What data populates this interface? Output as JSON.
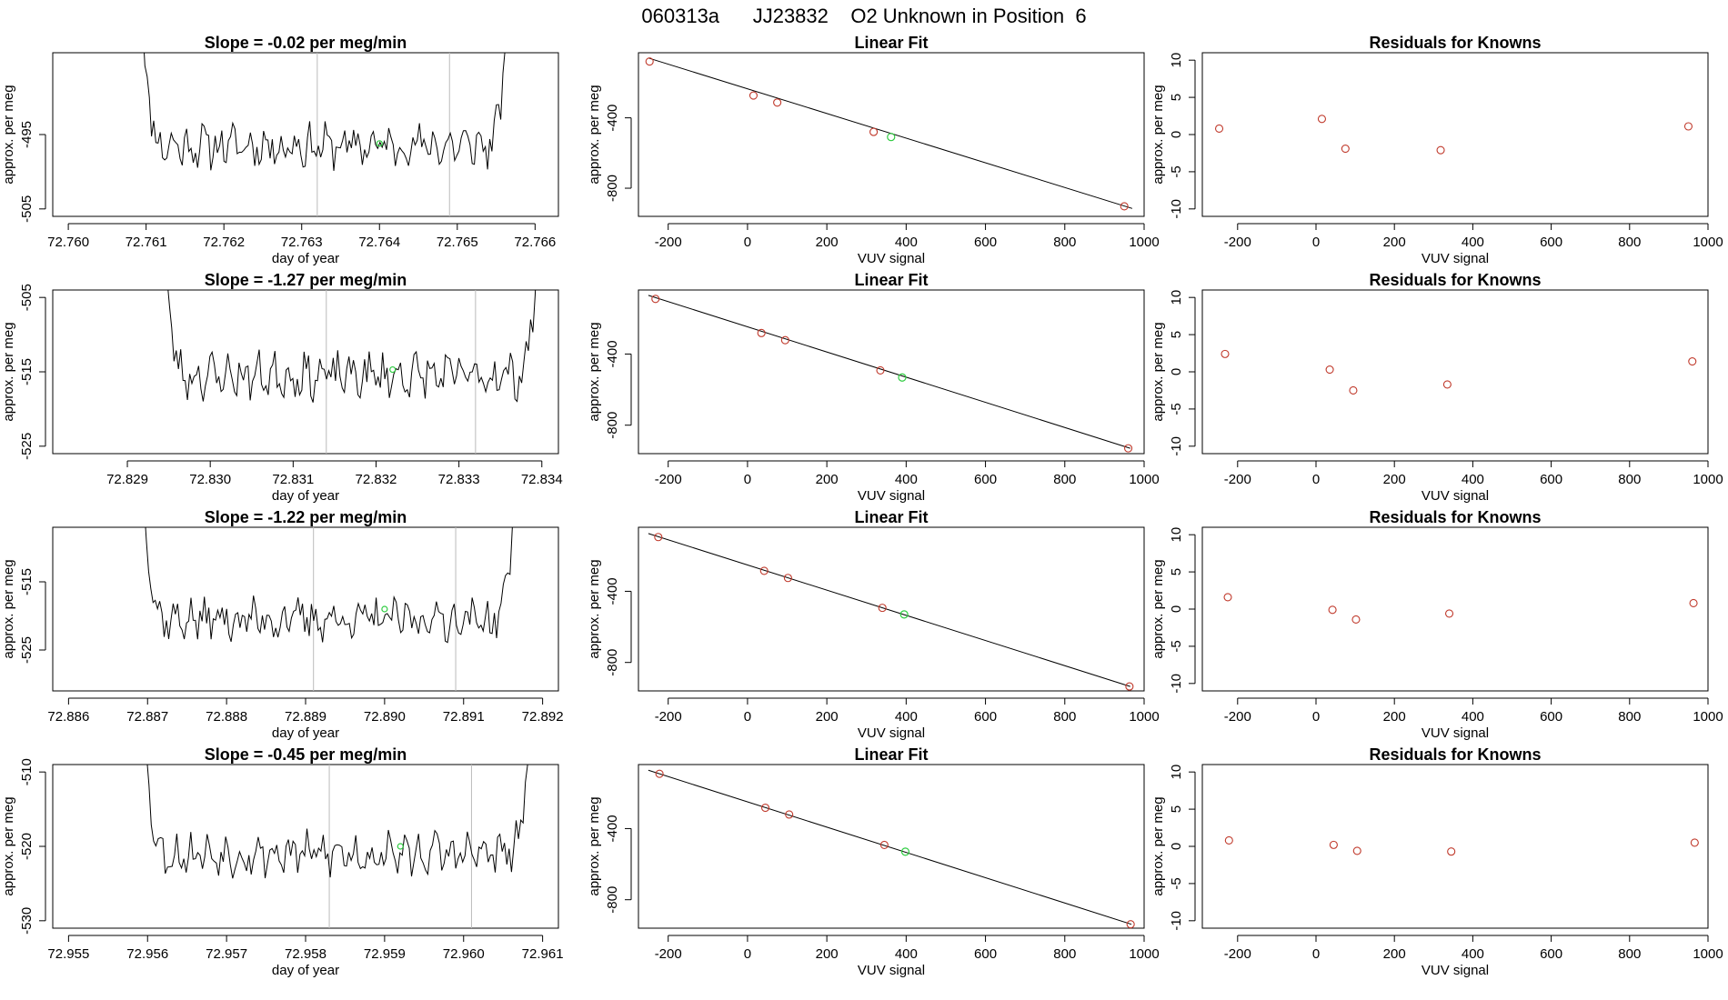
{
  "page_title": "060313a      JJ23832    O2 Unknown in Position  6",
  "colors": {
    "line": "#000000",
    "known_point": "#c0392b",
    "unknown_point": "#2ecc40",
    "vline": "#bbbbbb"
  },
  "chart_data": [
    {
      "type": "line",
      "title": "Slope =  -0.02  per meg/min",
      "xlabel": "day of year",
      "ylabel": "approx. per meg",
      "xlim": [
        72.7598,
        72.7663
      ],
      "ylim": [
        -506,
        -484
      ],
      "xticks": [
        "72.760",
        "72.761",
        "72.762",
        "72.763",
        "72.764",
        "72.765",
        "72.766"
      ],
      "xtick_values": [
        72.76,
        72.761,
        72.762,
        72.763,
        72.764,
        72.765,
        72.766
      ],
      "yticks": [
        "-495",
        "-505"
      ],
      "ytick_values": [
        -495,
        -505
      ],
      "x_start": 72.7609,
      "x_end": 72.7657,
      "base": -496.5,
      "amp": 2.2,
      "seed": 11,
      "vlines": [
        72.7632,
        72.7649
      ],
      "unknown_point": {
        "x": 72.764,
        "y": -496.2
      }
    },
    {
      "type": "scatter",
      "title": "Linear Fit",
      "xlabel": "VUV signal",
      "ylabel": "approx. per meg",
      "xlim": [
        -275,
        1000
      ],
      "ylim": [
        -960,
        -30
      ],
      "xticks": [
        "-200",
        "0",
        "200",
        "400",
        "600",
        "800",
        "1000"
      ],
      "xtick_values": [
        -200,
        0,
        200,
        400,
        600,
        800,
        1000
      ],
      "yticks": [
        "-400",
        "-800"
      ],
      "ytick_values": [
        -400,
        -800
      ],
      "fit_line": [
        [
          -250,
          -60
        ],
        [
          970,
          -915
        ]
      ],
      "known_points": [
        [
          -247,
          -80
        ],
        [
          15,
          -273
        ],
        [
          75,
          -313
        ],
        [
          318,
          -480
        ],
        [
          950,
          -903
        ]
      ],
      "unknown_point": [
        362,
        -509
      ]
    },
    {
      "type": "scatter",
      "title": "Residuals for Knowns",
      "xlabel": "VUV signal",
      "ylabel": "approx. per meg",
      "xlim": [
        -290,
        1000
      ],
      "ylim": [
        -11,
        11
      ],
      "xticks": [
        "-200",
        "0",
        "200",
        "400",
        "600",
        "800",
        "1000"
      ],
      "xtick_values": [
        -200,
        0,
        200,
        400,
        600,
        800,
        1000
      ],
      "yticks": [
        "-10",
        "-5",
        "0",
        "5",
        "10"
      ],
      "ytick_values": [
        -10,
        -5,
        0,
        5,
        10
      ],
      "known_points": [
        [
          -247,
          0.8
        ],
        [
          15,
          2.1
        ],
        [
          75,
          -1.9
        ],
        [
          318,
          -2.1
        ],
        [
          950,
          1.1
        ]
      ]
    },
    {
      "type": "line",
      "title": "Slope =  -1.27  per meg/min",
      "xlabel": "day of year",
      "ylabel": "approx. per meg",
      "xlim": [
        72.8281,
        72.8342
      ],
      "ylim": [
        -526,
        -504
      ],
      "xticks": [
        "72.829",
        "72.830",
        "72.831",
        "72.832",
        "72.833",
        "72.834"
      ],
      "xtick_values": [
        72.829,
        72.83,
        72.831,
        72.832,
        72.833,
        72.834
      ],
      "yticks": [
        "-505",
        "-515",
        "-525"
      ],
      "ytick_values": [
        -505,
        -515,
        -525
      ],
      "x_start": 72.8294,
      "x_end": 72.834,
      "base": -515.5,
      "amp": 2.3,
      "seed": 23,
      "vlines": [
        72.8314,
        72.8332
      ],
      "unknown_point": {
        "x": 72.8322,
        "y": -514.7
      }
    },
    {
      "type": "scatter",
      "title": "Linear Fit",
      "xlabel": "VUV signal",
      "ylabel": "approx. per meg",
      "xlim": [
        -275,
        1000
      ],
      "ylim": [
        -960,
        -40
      ],
      "xticks": [
        "-200",
        "0",
        "200",
        "400",
        "600",
        "800",
        "1000"
      ],
      "xtick_values": [
        -200,
        0,
        200,
        400,
        600,
        800,
        1000
      ],
      "yticks": [
        "-400",
        "-800"
      ],
      "ytick_values": [
        -400,
        -800
      ],
      "fit_line": [
        [
          -250,
          -70
        ],
        [
          965,
          -930
        ]
      ],
      "known_points": [
        [
          -232,
          -90
        ],
        [
          35,
          -282
        ],
        [
          95,
          -322
        ],
        [
          335,
          -492
        ],
        [
          960,
          -930
        ]
      ],
      "unknown_point": [
        390,
        -532
      ]
    },
    {
      "type": "scatter",
      "title": "Residuals for Knowns",
      "xlabel": "VUV signal",
      "ylabel": "approx. per meg",
      "xlim": [
        -290,
        1000
      ],
      "ylim": [
        -11,
        11
      ],
      "xticks": [
        "-200",
        "0",
        "200",
        "400",
        "600",
        "800",
        "1000"
      ],
      "xtick_values": [
        -200,
        0,
        200,
        400,
        600,
        800,
        1000
      ],
      "yticks": [
        "-10",
        "-5",
        "0",
        "5",
        "10"
      ],
      "ytick_values": [
        -10,
        -5,
        0,
        5,
        10
      ],
      "known_points": [
        [
          -232,
          2.4
        ],
        [
          35,
          0.3
        ],
        [
          95,
          -2.5
        ],
        [
          335,
          -1.7
        ],
        [
          960,
          1.4
        ]
      ]
    },
    {
      "type": "line",
      "title": "Slope =  -1.22  per meg/min",
      "xlabel": "day of year",
      "ylabel": "approx. per meg",
      "xlim": [
        72.8858,
        72.8922
      ],
      "ylim": [
        -531,
        -507
      ],
      "xticks": [
        "72.886",
        "72.887",
        "72.888",
        "72.889",
        "72.890",
        "72.891",
        "72.892"
      ],
      "xtick_values": [
        72.886,
        72.887,
        72.888,
        72.889,
        72.89,
        72.891,
        72.892
      ],
      "yticks": [
        "-515",
        "-525"
      ],
      "ytick_values": [
        -515,
        -525
      ],
      "x_start": 72.8869,
      "x_end": 72.8917,
      "base": -520.5,
      "amp": 2.3,
      "seed": 37,
      "vlines": [
        72.8891,
        72.8909
      ],
      "unknown_point": {
        "x": 72.89,
        "y": -519.0
      }
    },
    {
      "type": "scatter",
      "title": "Linear Fit",
      "xlabel": "VUV signal",
      "ylabel": "approx. per meg",
      "xlim": [
        -275,
        1000
      ],
      "ylim": [
        -960,
        -40
      ],
      "xticks": [
        "-200",
        "0",
        "200",
        "400",
        "600",
        "800",
        "1000"
      ],
      "xtick_values": [
        -200,
        0,
        200,
        400,
        600,
        800,
        1000
      ],
      "yticks": [
        "-400",
        "-800"
      ],
      "ytick_values": [
        -400,
        -800
      ],
      "fit_line": [
        [
          -250,
          -75
        ],
        [
          965,
          -935
        ]
      ],
      "known_points": [
        [
          -225,
          -95
        ],
        [
          42,
          -285
        ],
        [
          102,
          -325
        ],
        [
          340,
          -493
        ],
        [
          963,
          -935
        ]
      ],
      "unknown_point": [
        395,
        -530
      ]
    },
    {
      "type": "scatter",
      "title": "Residuals for Knowns",
      "xlabel": "VUV signal",
      "ylabel": "approx. per meg",
      "xlim": [
        -290,
        1000
      ],
      "ylim": [
        -11,
        11
      ],
      "xticks": [
        "-200",
        "0",
        "200",
        "400",
        "600",
        "800",
        "1000"
      ],
      "xtick_values": [
        -200,
        0,
        200,
        400,
        600,
        800,
        1000
      ],
      "yticks": [
        "-10",
        "-5",
        "0",
        "5",
        "10"
      ],
      "ytick_values": [
        -10,
        -5,
        0,
        5,
        10
      ],
      "known_points": [
        [
          -225,
          1.6
        ],
        [
          42,
          -0.1
        ],
        [
          102,
          -1.4
        ],
        [
          340,
          -0.6
        ],
        [
          963,
          0.8
        ]
      ]
    },
    {
      "type": "line",
      "title": "Slope =  -0.45  per meg/min",
      "xlabel": "day of year",
      "ylabel": "approx. per meg",
      "xlim": [
        72.9548,
        72.9612
      ],
      "ylim": [
        -531,
        -509
      ],
      "xticks": [
        "72.955",
        "72.956",
        "72.957",
        "72.958",
        "72.959",
        "72.960",
        "72.961"
      ],
      "xtick_values": [
        72.955,
        72.956,
        72.957,
        72.958,
        72.959,
        72.96,
        72.961
      ],
      "yticks": [
        "-510",
        "-520",
        "-530"
      ],
      "ytick_values": [
        -510,
        -520,
        -530
      ],
      "x_start": 72.9559,
      "x_end": 72.9609,
      "base": -521.0,
      "amp": 2.2,
      "seed": 53,
      "vlines": [
        72.9583,
        72.9601
      ],
      "unknown_point": {
        "x": 72.9592,
        "y": -520.0
      }
    },
    {
      "type": "scatter",
      "title": "Linear Fit",
      "xlabel": "VUV signal",
      "ylabel": "approx. per meg",
      "xlim": [
        -275,
        1000
      ],
      "ylim": [
        -960,
        -40
      ],
      "xticks": [
        "-200",
        "0",
        "200",
        "400",
        "600",
        "800",
        "1000"
      ],
      "xtick_values": [
        -200,
        0,
        200,
        400,
        600,
        800,
        1000
      ],
      "yticks": [
        "-400",
        "-800"
      ],
      "ytick_values": [
        -400,
        -800
      ],
      "fit_line": [
        [
          -250,
          -72
        ],
        [
          968,
          -938
        ]
      ],
      "known_points": [
        [
          -222,
          -92
        ],
        [
          45,
          -283
        ],
        [
          105,
          -321
        ],
        [
          345,
          -492
        ],
        [
          966,
          -938
        ]
      ],
      "unknown_point": [
        398,
        -530
      ]
    },
    {
      "type": "scatter",
      "title": "Residuals for Knowns",
      "xlabel": "VUV signal",
      "ylabel": "approx. per meg",
      "xlim": [
        -290,
        1000
      ],
      "ylim": [
        -11,
        11
      ],
      "xticks": [
        "-200",
        "0",
        "200",
        "400",
        "600",
        "800",
        "1000"
      ],
      "xtick_values": [
        -200,
        0,
        200,
        400,
        600,
        800,
        1000
      ],
      "yticks": [
        "-10",
        "-5",
        "0",
        "5",
        "10"
      ],
      "ytick_values": [
        -10,
        -5,
        0,
        5,
        10
      ],
      "known_points": [
        [
          -222,
          0.8
        ],
        [
          45,
          0.2
        ],
        [
          105,
          -0.6
        ],
        [
          345,
          -0.7
        ],
        [
          966,
          0.5
        ]
      ]
    }
  ]
}
